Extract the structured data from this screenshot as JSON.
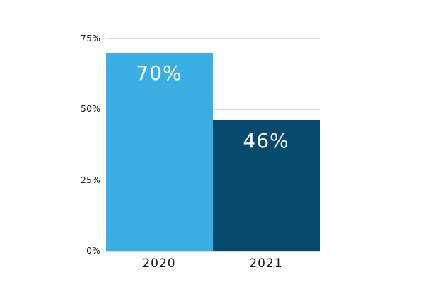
{
  "chart_data": {
    "type": "bar",
    "categories": [
      "2020",
      "2021"
    ],
    "values": [
      70,
      46
    ],
    "value_labels": [
      "70%",
      "46%"
    ],
    "series": [
      {
        "name": "2020",
        "value": 70,
        "label": "70%",
        "color": "#3BAFE4"
      },
      {
        "name": "2021",
        "value": 46,
        "label": "46%",
        "color": "#064B6D"
      }
    ],
    "title": "",
    "xlabel": "",
    "ylabel": "",
    "ylim": [
      0,
      75
    ],
    "yticks": [
      {
        "value": 75,
        "label": "75%"
      },
      {
        "value": 50,
        "label": "50%"
      },
      {
        "value": 25,
        "label": "25%"
      },
      {
        "value": 0,
        "label": "0%"
      }
    ],
    "grid": true,
    "legend": false,
    "colors": {
      "background": "#ffffff",
      "gridline": "#d9d9d9",
      "tick_text": "#1a1a1a",
      "bar_label_text": "#ffffff",
      "bar_2020": "#3BAFE4",
      "bar_2021": "#064B6D"
    }
  }
}
